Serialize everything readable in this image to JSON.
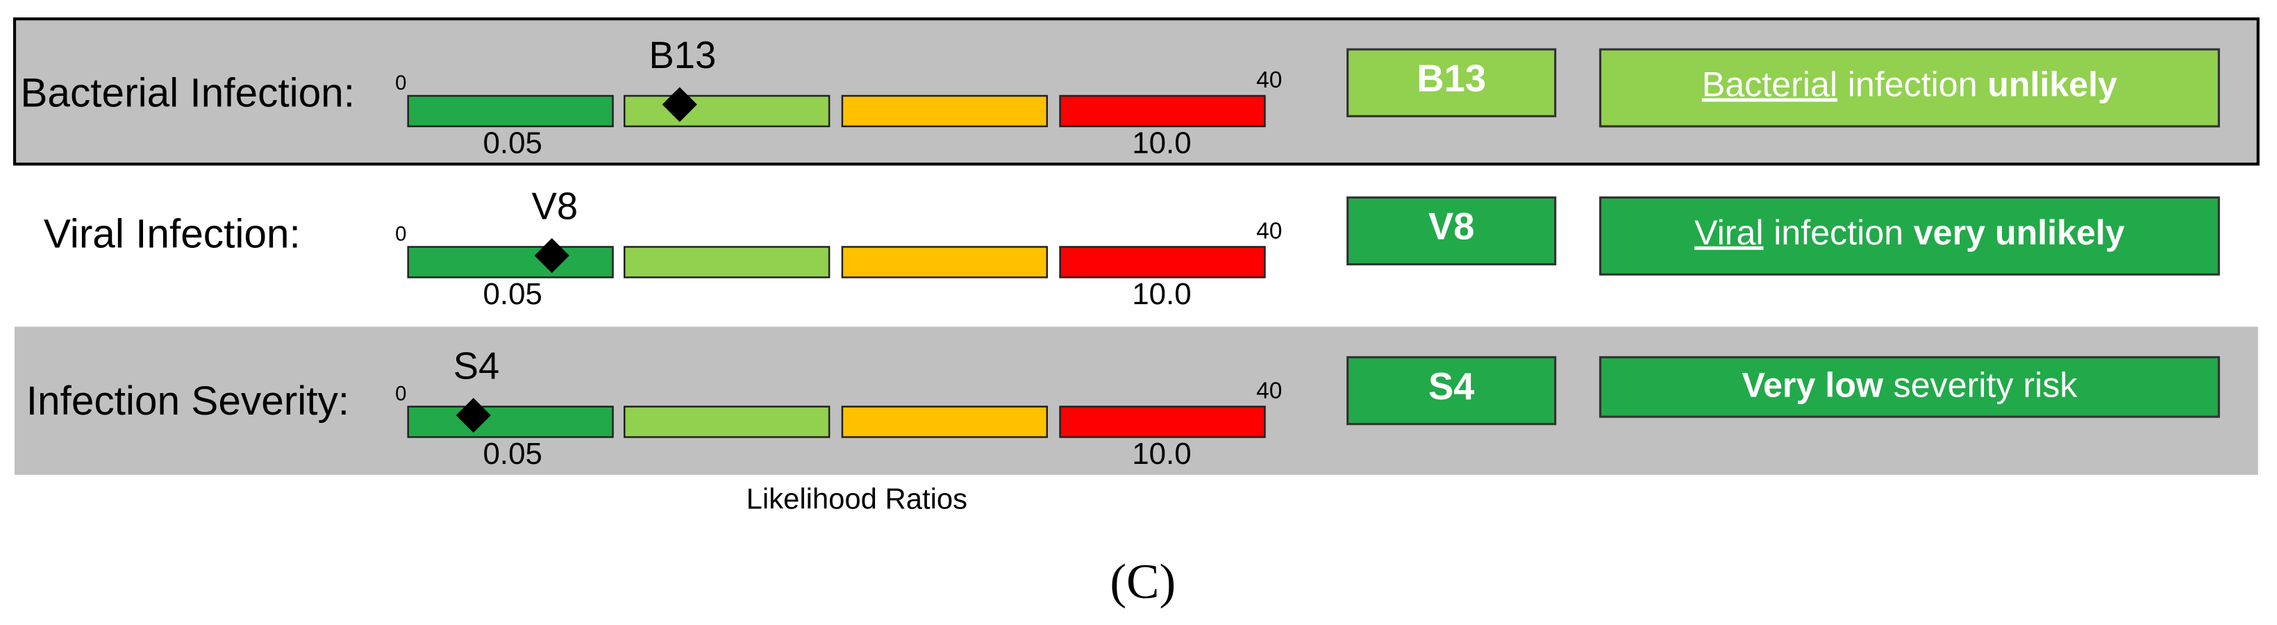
{
  "rows": [
    {
      "label": "Bacterial Infection:",
      "marker": "B13",
      "scale_min": "0",
      "scale_max": "40",
      "low_tick": "0.05",
      "high_tick": "10.0",
      "badge": "B13",
      "badge_color": "#92d050",
      "message": [
        {
          "text": "Bacterial",
          "style": "underline"
        },
        {
          "text": "infection",
          "style": "normal"
        },
        {
          "text": "unlikely",
          "style": "bold"
        }
      ]
    },
    {
      "label": "Viral Infection:",
      "marker": "V8",
      "scale_min": "0",
      "scale_max": "40",
      "low_tick": "0.05",
      "high_tick": "10.0",
      "badge": "V8",
      "badge_color": "#22a94a",
      "message": [
        {
          "text": "Viral",
          "style": "underline"
        },
        {
          "text": "infection",
          "style": "normal"
        },
        {
          "text": "very unlikely",
          "style": "bold"
        }
      ]
    },
    {
      "label": "Infection Severity:",
      "marker": "S4",
      "scale_min": "0",
      "scale_max": "40",
      "low_tick": "0.05",
      "high_tick": "10.0",
      "badge": "S4",
      "badge_color": "#22a94a",
      "message": [
        {
          "text": "Very low",
          "style": "bold"
        },
        {
          "text": "severity risk",
          "style": "normal"
        }
      ]
    }
  ],
  "axis_label": "Likelihood Ratios",
  "caption": "(C)"
}
